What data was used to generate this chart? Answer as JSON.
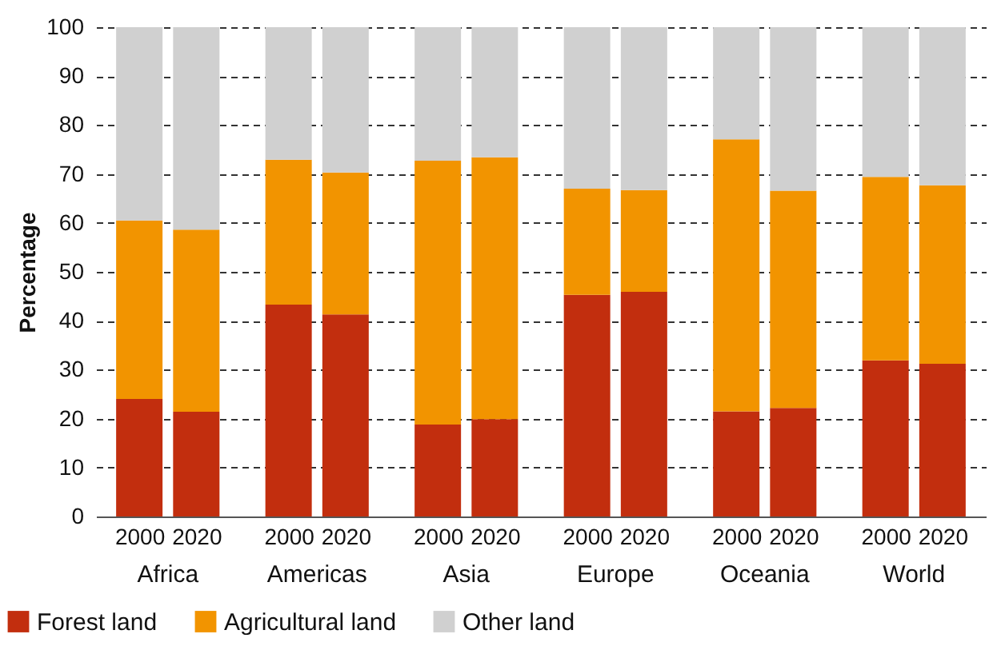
{
  "chart_data": {
    "type": "bar",
    "stacked": true,
    "ylabel": "Percentage",
    "categories": [
      "2000",
      "2020",
      "2000",
      "2020",
      "2000",
      "2020",
      "2000",
      "2020",
      "2000",
      "2020",
      "2000",
      "2020"
    ],
    "annotations": [
      "Africa",
      "Americas",
      "Asia",
      "Europe",
      "Oceania",
      "World"
    ],
    "series": [
      {
        "name": "Forest land",
        "color": "#c22e0e",
        "values": [
          24,
          21.4,
          43.3,
          41.3,
          18.8,
          19.9,
          45.3,
          45.9,
          21.5,
          22.2,
          31.9,
          31.2
        ]
      },
      {
        "name": "Agricultural land",
        "color": "#f29400",
        "values": [
          36.5,
          37.2,
          29.6,
          29,
          53.9,
          53.5,
          21.7,
          20.8,
          55.6,
          44.4,
          37.5,
          36.5
        ]
      },
      {
        "name": "Other land",
        "color": "#d0d0d0",
        "values": [
          39.5,
          41.4,
          27.1,
          29.7,
          27.3,
          26.6,
          33,
          33.3,
          22.9,
          33.4,
          30.6,
          32.3
        ]
      }
    ],
    "ylim": [
      0,
      100
    ],
    "yticks": [
      0,
      10,
      20,
      30,
      40,
      50,
      60,
      70,
      80,
      90,
      100
    ],
    "grid": "y",
    "legend": "bottom left"
  }
}
